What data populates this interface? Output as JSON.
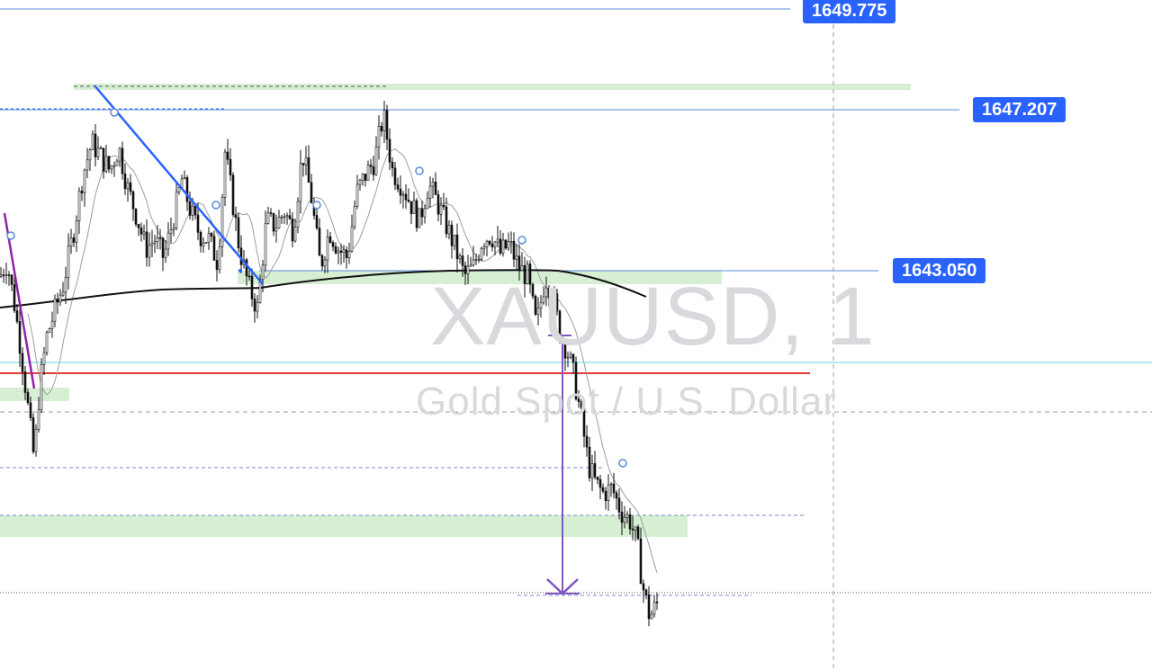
{
  "watermark": {
    "symbol": "XAUUSD, 1",
    "description": "Gold Spot / U.S. Dollar"
  },
  "price_tags": [
    "1649.775",
    "1647.207",
    "1643.050"
  ],
  "colors": {
    "tag": "#2962ff",
    "zone": "#d6efd3",
    "red_line": "#e53935",
    "cyan_line": "#80deea",
    "candle": "#111111",
    "trend_blue": "#2962ff",
    "arrow_purple": "#7e57c2",
    "ma_gray": "#9e9e9e",
    "ma_black": "#111111"
  },
  "chart_data": {
    "type": "candlestick",
    "symbol": "XAUUSD",
    "timeframe": "1",
    "ylim": [
      1637.2,
      1650.0
    ],
    "horizontal_levels": [
      1649.775,
      1647.207,
      1643.05
    ],
    "close_path": [
      [
        0,
        1644.2
      ],
      [
        8,
        1644.5
      ],
      [
        16,
        1643.6
      ],
      [
        24,
        1642.5
      ],
      [
        32,
        1641.2
      ],
      [
        38,
        1640.2
      ],
      [
        44,
        1641.8
      ],
      [
        52,
        1642.9
      ],
      [
        60,
        1643.4
      ],
      [
        70,
        1644.0
      ],
      [
        82,
        1645.2
      ],
      [
        92,
        1646.4
      ],
      [
        102,
        1647.1
      ],
      [
        112,
        1646.8
      ],
      [
        122,
        1646.5
      ],
      [
        132,
        1647.0
      ],
      [
        142,
        1646.1
      ],
      [
        152,
        1645.5
      ],
      [
        162,
        1644.8
      ],
      [
        172,
        1645.0
      ],
      [
        182,
        1644.6
      ],
      [
        192,
        1645.4
      ],
      [
        202,
        1646.3
      ],
      [
        212,
        1645.6
      ],
      [
        222,
        1645.1
      ],
      [
        232,
        1645.0
      ],
      [
        242,
        1644.5
      ],
      [
        250,
        1646.9
      ],
      [
        258,
        1645.9
      ],
      [
        266,
        1644.8
      ],
      [
        276,
        1644.0
      ],
      [
        286,
        1643.5
      ],
      [
        296,
        1645.4
      ],
      [
        306,
        1645.3
      ],
      [
        316,
        1645.6
      ],
      [
        326,
        1645.2
      ],
      [
        336,
        1646.9
      ],
      [
        346,
        1645.9
      ],
      [
        356,
        1644.4
      ],
      [
        366,
        1645.2
      ],
      [
        376,
        1644.8
      ],
      [
        386,
        1644.6
      ],
      [
        396,
        1646.0
      ],
      [
        406,
        1646.4
      ],
      [
        416,
        1646.7
      ],
      [
        426,
        1647.7
      ],
      [
        436,
        1646.5
      ],
      [
        446,
        1646.2
      ],
      [
        456,
        1645.8
      ],
      [
        466,
        1645.4
      ],
      [
        476,
        1646.2
      ],
      [
        486,
        1645.8
      ],
      [
        496,
        1645.3
      ],
      [
        506,
        1644.8
      ],
      [
        516,
        1644.2
      ],
      [
        526,
        1644.4
      ],
      [
        536,
        1645.0
      ],
      [
        546,
        1645.1
      ],
      [
        556,
        1644.7
      ],
      [
        566,
        1644.9
      ],
      [
        576,
        1644.4
      ],
      [
        586,
        1644.2
      ],
      [
        596,
        1643.1
      ],
      [
        606,
        1644.2
      ],
      [
        614,
        1643.8
      ],
      [
        622,
        1643.0
      ],
      [
        630,
        1642.6
      ],
      [
        638,
        1642.0
      ],
      [
        646,
        1641.1
      ],
      [
        654,
        1640.1
      ],
      [
        662,
        1639.7
      ],
      [
        670,
        1639.5
      ],
      [
        680,
        1639.6
      ],
      [
        690,
        1639.1
      ],
      [
        700,
        1638.9
      ],
      [
        708,
        1638.4
      ],
      [
        714,
        1637.5
      ],
      [
        722,
        1636.8
      ],
      [
        730,
        1637.1
      ]
    ]
  }
}
